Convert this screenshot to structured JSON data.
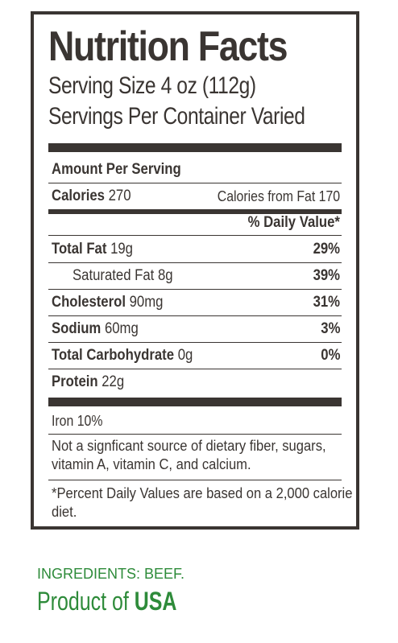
{
  "label": {
    "title": "Nutrition Facts",
    "serving_size": "Serving Size 4 oz (112g)",
    "servings_per_container": "Servings Per Container Varied",
    "amount_per_serving": "Amount Per Serving",
    "calories_label": "Calories",
    "calories_value": "270",
    "calories_from_fat": "Calories from Fat 170",
    "daily_value_header": "% Daily Value*",
    "rows": [
      {
        "name": "Total Fat",
        "amount": "19g",
        "dv": "29%",
        "bold": true
      },
      {
        "name": "Saturated Fat",
        "amount": "8g",
        "dv": "39%",
        "bold": false
      },
      {
        "name": "Cholesterol",
        "amount": "90mg",
        "dv": "31%",
        "bold": true
      },
      {
        "name": "Sodium",
        "amount": "60mg",
        "dv": "3%",
        "bold": true
      },
      {
        "name": "Total Carbohydrate",
        "amount": "0g",
        "dv": "0%",
        "bold": true
      },
      {
        "name": "Protein",
        "amount": "22g",
        "dv": "",
        "bold": true
      }
    ],
    "iron": "Iron 10%",
    "not_significant": "Not a signficant source of dietary fiber, sugars, vitamin A, vitamin C, and calcium.",
    "footnote": "*Percent Daily Values are based on a 2,000 calorie diet."
  },
  "ingredients": "INGREDIENTS: BEEF.",
  "origin": {
    "prefix": "Product of ",
    "country": "USA"
  },
  "colors": {
    "text": "#3a3532",
    "green": "#2e8b3a"
  }
}
